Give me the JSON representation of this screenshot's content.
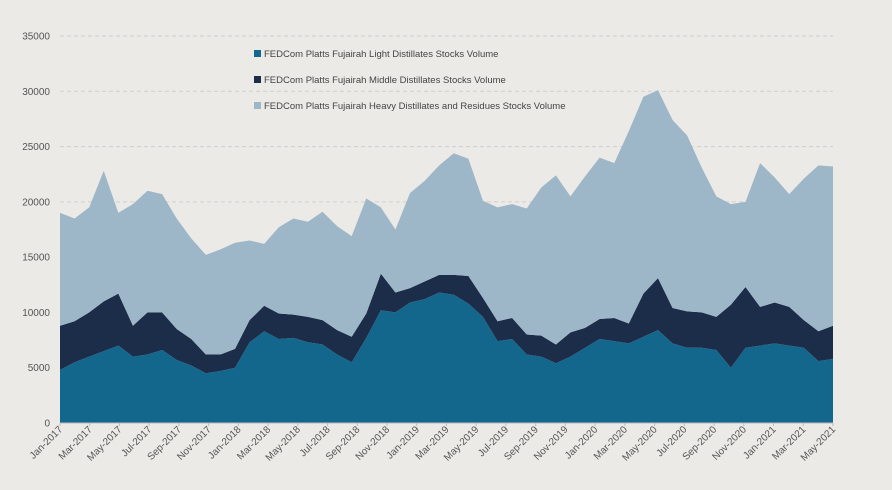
{
  "chart_data": {
    "type": "area",
    "stacked": true,
    "title": "",
    "xlabel": "",
    "ylabel": "",
    "ylim": [
      0,
      35000
    ],
    "y_ticks": [
      0,
      5000,
      10000,
      15000,
      20000,
      25000,
      30000,
      35000
    ],
    "y_tick_labels": [
      "0",
      "5000",
      "10000",
      "15000",
      "20000",
      "25000",
      "30000",
      "35000"
    ],
    "x_tick_labels": [
      "Jan-2017",
      "Mar-2017",
      "May-2017",
      "Jul-2017",
      "Sep-2017",
      "Nov-2017",
      "Jan-2018",
      "Mar-2018",
      "May-2018",
      "Jul-2018",
      "Sep-2018",
      "Nov-2018",
      "Jan-2019",
      "Mar-2019",
      "May-2019",
      "Jul-2019",
      "Sep-2019",
      "Nov-2019",
      "Jan-2020",
      "Mar-2020",
      "May-2020",
      "Jul-2020",
      "Sep-2020",
      "Nov-2020",
      "Jan-2021",
      "Mar-2021",
      "May-2021"
    ],
    "grid": "horizontal dashed",
    "legend_position": "top-left",
    "x": [
      "Jan-2017",
      "Feb-2017",
      "Mar-2017",
      "Apr-2017",
      "May-2017",
      "Jun-2017",
      "Jul-2017",
      "Aug-2017",
      "Sep-2017",
      "Oct-2017",
      "Nov-2017",
      "Dec-2017",
      "Jan-2018",
      "Feb-2018",
      "Mar-2018",
      "Apr-2018",
      "May-2018",
      "Jun-2018",
      "Jul-2018",
      "Aug-2018",
      "Sep-2018",
      "Oct-2018",
      "Nov-2018",
      "Dec-2018",
      "Jan-2019",
      "Feb-2019",
      "Mar-2019",
      "Apr-2019",
      "May-2019",
      "Jun-2019",
      "Jul-2019",
      "Aug-2019",
      "Sep-2019",
      "Oct-2019",
      "Nov-2019",
      "Dec-2019",
      "Jan-2020",
      "Feb-2020",
      "Mar-2020",
      "Apr-2020",
      "May-2020",
      "Jun-2020",
      "Jul-2020",
      "Aug-2020",
      "Sep-2020",
      "Oct-2020",
      "Nov-2020",
      "Dec-2020",
      "Jan-2021",
      "Feb-2021",
      "Mar-2021",
      "Apr-2021",
      "May-2021",
      "Jun-2021"
    ],
    "series": [
      {
        "name": "FEDCom Platts Fujairah Light Distillates Stocks Volume",
        "color": "#14678c",
        "values": [
          4800,
          5500,
          6000,
          6500,
          7000,
          6000,
          6200,
          6600,
          5700,
          5200,
          4500,
          4700,
          5000,
          7300,
          8300,
          7600,
          7700,
          7300,
          7100,
          6200,
          5500,
          7700,
          10200,
          10000,
          10900,
          11200,
          11800,
          11600,
          10800,
          9600,
          7400,
          7600,
          6200,
          6000,
          5400,
          6000,
          6800,
          7600,
          7400,
          7200,
          7800,
          8400,
          7200,
          6800,
          6800,
          6600,
          5000,
          6800,
          7000,
          7200,
          7000,
          6800,
          5600,
          5800
        ]
      },
      {
        "name": "FEDCom Platts Fujairah Middle Distillates Stocks Volume",
        "color": "#1c2d4a",
        "values": [
          4000,
          3700,
          4000,
          4500,
          4700,
          2800,
          3800,
          3400,
          2800,
          2400,
          1700,
          1500,
          1700,
          2000,
          2300,
          2300,
          2100,
          2300,
          2200,
          2200,
          2300,
          2200,
          3300,
          1800,
          1300,
          1600,
          1600,
          1800,
          2500,
          1700,
          1800,
          1900,
          1800,
          1900,
          1700,
          2200,
          1800,
          1800,
          2100,
          1800,
          3900,
          4700,
          3200,
          3300,
          3200,
          3000,
          5700,
          5500,
          3500,
          3700,
          3500,
          2500,
          2700,
          3000
        ]
      },
      {
        "name": "FEDCom Platts Fujairah Heavy Distillates and Residues Stocks Volume",
        "color": "#9db7c8",
        "values": [
          10200,
          9300,
          9500,
          11800,
          7300,
          11000,
          11000,
          10700,
          10000,
          9100,
          9000,
          9500,
          9600,
          7200,
          5600,
          7800,
          8700,
          8600,
          9800,
          9400,
          9100,
          10400,
          6000,
          5700,
          8600,
          9100,
          9900,
          11000,
          10600,
          8800,
          10300,
          10300,
          11400,
          13400,
          15300,
          12300,
          13700,
          14600,
          14000,
          17400,
          17800,
          17000,
          17000,
          15900,
          13100,
          10900,
          9100,
          7700,
          13000,
          11300,
          10200,
          12800,
          15000,
          14400
        ]
      }
    ]
  }
}
